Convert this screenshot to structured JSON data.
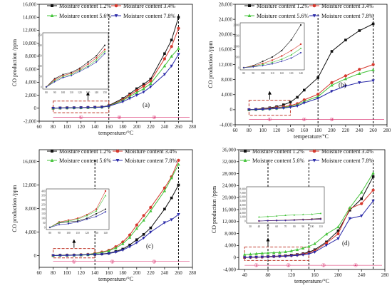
{
  "colors": {
    "s1": "#111111",
    "s2": "#d6382e",
    "s3": "#45c33b",
    "s4": "#2a2aa8",
    "box": "#c0392b",
    "region": "#d81b60",
    "axis": "#000000"
  },
  "chart_data": [
    {
      "type": "line",
      "panel_label": "(a)",
      "xlabel": "temperature/°C",
      "ylabel": "CO production /ppm",
      "xlim": [
        60,
        280
      ],
      "ylim": [
        -2000,
        16000
      ],
      "xticks": [
        "60",
        "80",
        "100",
        "120",
        "140",
        "160",
        "180",
        "200",
        "220",
        "240",
        "260",
        "280"
      ],
      "yticks": [
        "-2,000",
        "0",
        "2,000",
        "4,000",
        "6,000",
        "8,000",
        "10,000",
        "12,000",
        "14,000",
        "16,000"
      ],
      "x": [
        80,
        90,
        100,
        110,
        120,
        130,
        140,
        150,
        160,
        180,
        190,
        200,
        210,
        220,
        240,
        250,
        260
      ],
      "series": [
        {
          "name": "Moisture content 1.2%",
          "values": [
            0,
            40,
            60,
            70,
            90,
            120,
            150,
            200,
            400,
            1500,
            2200,
            3000,
            3700,
            4500,
            8400,
            10500,
            14000
          ]
        },
        {
          "name": "Moisture content 3.4%",
          "values": [
            0,
            35,
            55,
            65,
            85,
            110,
            140,
            180,
            350,
            1300,
            2000,
            2700,
            3400,
            4200,
            7600,
            9500,
            12300
          ]
        },
        {
          "name": "Moisture content 5.6%",
          "values": [
            0,
            30,
            50,
            60,
            80,
            100,
            130,
            170,
            330,
            1200,
            1800,
            2400,
            3000,
            3800,
            6500,
            8000,
            9200
          ]
        },
        {
          "name": "Moisture content 7.8%",
          "values": [
            0,
            25,
            45,
            55,
            75,
            95,
            120,
            160,
            300,
            1000,
            1500,
            2000,
            2500,
            3300,
            5200,
            6500,
            8300
          ]
        }
      ],
      "inset": {
        "xticks": [
          "80",
          "90",
          "100",
          "110",
          "120",
          "130",
          "140",
          "150"
        ],
        "yticks": [
          "0",
          "50",
          "100",
          "150",
          "200",
          "250"
        ]
      },
      "region_labels": [
        "①",
        "②",
        "③"
      ]
    },
    {
      "type": "line",
      "panel_label": "(b)",
      "xlabel": "temperature/°C",
      "ylabel": "CO production /ppm",
      "xlim": [
        60,
        280
      ],
      "ylim": [
        -4000,
        28000
      ],
      "xticks": [
        "60",
        "80",
        "100",
        "120",
        "140",
        "160",
        "180",
        "200",
        "220",
        "240",
        "260",
        "280"
      ],
      "yticks": [
        "-4,000",
        "0",
        "4,000",
        "8,000",
        "12,000",
        "16,000",
        "20,000",
        "24,000",
        "28,000"
      ],
      "x": [
        80,
        90,
        100,
        110,
        120,
        130,
        140,
        150,
        160,
        180,
        200,
        220,
        240,
        260
      ],
      "series": [
        {
          "name": "Moisture content 1.2%",
          "values": [
            0,
            100,
            300,
            500,
            800,
            1300,
            2000,
            3300,
            5200,
            8500,
            15500,
            18500,
            21000,
            22800
          ]
        },
        {
          "name": "Moisture content 3.4%",
          "values": [
            0,
            80,
            200,
            350,
            550,
            800,
            1100,
            1600,
            2600,
            4100,
            7200,
            9000,
            10700,
            12000
          ]
        },
        {
          "name": "Moisture content 5.6%",
          "values": [
            0,
            60,
            150,
            250,
            400,
            600,
            900,
            1300,
            2200,
            3500,
            6500,
            8200,
            9600,
            10600
          ]
        },
        {
          "name": "Moisture content 7.8%",
          "values": [
            0,
            40,
            100,
            180,
            300,
            450,
            700,
            1000,
            1800,
            3000,
            4900,
            6300,
            7200,
            7700
          ]
        }
      ],
      "inset": {
        "xticks": [
          "80",
          "90",
          "100",
          "110",
          "120",
          "130",
          "140"
        ],
        "yticks": [
          "0",
          "500",
          "1,000",
          "1,500",
          "2,000"
        ]
      },
      "region_labels": [
        "①",
        "②",
        "③"
      ]
    },
    {
      "type": "line",
      "panel_label": "(c)",
      "xlabel": "temperature/°C",
      "ylabel": "CO production /ppm",
      "xlim": [
        60,
        280
      ],
      "ylim": [
        -2000,
        18000
      ],
      "xticks": [
        "60",
        "80",
        "100",
        "120",
        "140",
        "160",
        "180",
        "200",
        "220",
        "240",
        "260",
        "280"
      ],
      "yticks": [
        "0",
        "4,000",
        "8,000",
        "12,000",
        "16,000"
      ],
      "x": [
        80,
        90,
        100,
        110,
        120,
        130,
        140,
        150,
        160,
        170,
        180,
        190,
        200,
        210,
        220,
        240,
        250,
        260
      ],
      "series": [
        {
          "name": "Moisture content 1.2%",
          "values": [
            0,
            50,
            60,
            70,
            100,
            150,
            200,
            280,
            400,
            700,
            1100,
            1800,
            2700,
            3600,
            4700,
            7900,
            9800,
            12000
          ]
        },
        {
          "name": "Moisture content 3.4%",
          "values": [
            0,
            60,
            80,
            100,
            140,
            200,
            400,
            600,
            900,
            1500,
            2300,
            3500,
            5200,
            6800,
            8200,
            11500,
            13400,
            16200
          ]
        },
        {
          "name": "Moisture content 5.6%",
          "values": [
            0,
            55,
            70,
            90,
            130,
            180,
            350,
            500,
            800,
            1300,
            2000,
            3100,
            4600,
            6000,
            7600,
            11000,
            13200,
            15500
          ]
        },
        {
          "name": "Moisture content 7.8%",
          "values": [
            0,
            30,
            40,
            60,
            90,
            120,
            170,
            230,
            350,
            600,
            950,
            1500,
            2200,
            3000,
            4000,
            5600,
            6100,
            7000
          ]
        }
      ],
      "inset": {
        "xticks": [
          "80",
          "90",
          "100",
          "110",
          "120",
          "130",
          "140"
        ],
        "yticks": [
          "0",
          "50",
          "100",
          "150",
          "200",
          "250",
          "300",
          "350",
          "400"
        ]
      },
      "region_labels": [
        "①",
        "②",
        "③"
      ]
    },
    {
      "type": "line",
      "panel_label": "(d)",
      "xlabel": "temperature/°C",
      "ylabel": "CO production /ppm",
      "xlim": [
        30,
        280
      ],
      "ylim": [
        -4000,
        36000
      ],
      "xticks": [
        "40",
        "80",
        "120",
        "160",
        "200",
        "240",
        "280"
      ],
      "yticks": [
        "-4,000",
        "0",
        "4,000",
        "8,000",
        "12,000",
        "16,000",
        "20,000",
        "24,000",
        "28,000",
        "32,000",
        "36,000"
      ],
      "x": [
        40,
        50,
        60,
        70,
        80,
        90,
        100,
        110,
        120,
        130,
        140,
        150,
        160,
        180,
        200,
        220,
        240,
        260
      ],
      "series": [
        {
          "name": "Moisture content 1.2%",
          "values": [
            0,
            100,
            150,
            200,
            300,
            400,
            500,
            600,
            800,
            1000,
            1300,
            1800,
            2600,
            5200,
            8900,
            15800,
            19600,
            27000
          ]
        },
        {
          "name": "Moisture content 3.4%",
          "values": [
            0,
            80,
            120,
            160,
            250,
            330,
            420,
            500,
            650,
            850,
            1100,
            1500,
            2200,
            4800,
            7900,
            16300,
            18000,
            22500
          ]
        },
        {
          "name": "Moisture content 5.6%",
          "values": [
            1000,
            1100,
            1250,
            1400,
            1500,
            1600,
            1700,
            1900,
            2200,
            2600,
            3100,
            3700,
            4600,
            7800,
            10200,
            16600,
            21800,
            28200
          ]
        },
        {
          "name": "Moisture content 7.8%",
          "values": [
            0,
            60,
            100,
            140,
            200,
            270,
            350,
            430,
            550,
            700,
            900,
            1200,
            1800,
            4100,
            6300,
            13000,
            13900,
            18900
          ]
        }
      ],
      "inset": {
        "xticks": [
          "30",
          "40",
          "50",
          "60",
          "70",
          "80",
          "90",
          "100",
          "110"
        ],
        "yticks": [
          "0",
          "1,000",
          "2,000",
          "3,000",
          "4,000",
          "5,000",
          "6,000",
          "7,000",
          "8,000"
        ]
      },
      "region_labels": [
        "①",
        "②",
        "③",
        "④"
      ]
    }
  ]
}
